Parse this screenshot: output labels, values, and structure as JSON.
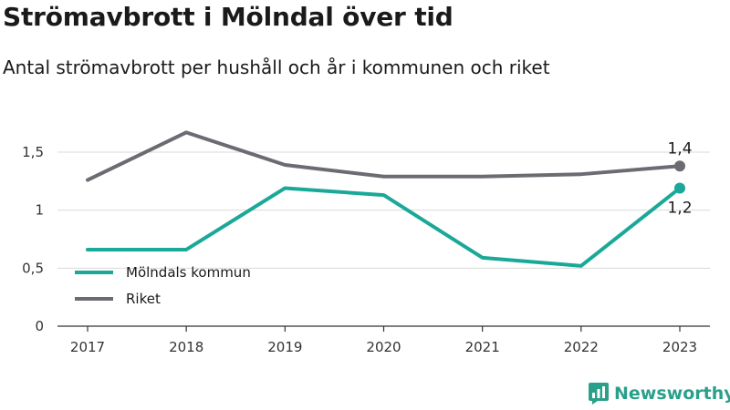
{
  "title": "Strömavbrott i Mölndal över tid",
  "subtitle": "Antal strömavbrott per hushåll och år i kommunen och riket",
  "brand": "Newsworthy",
  "colors": {
    "kommun": "#1aa898",
    "riket": "#6b6b72",
    "grid": "#d9d9d9",
    "brand": "#2aa08a"
  },
  "chart_data": {
    "type": "line",
    "categories": [
      "2017",
      "2018",
      "2019",
      "2020",
      "2021",
      "2022",
      "2023"
    ],
    "ylim": [
      0,
      1.65
    ],
    "yticks": [
      0,
      0.5,
      1,
      1.5
    ],
    "ytick_labels": [
      "0",
      "0,5",
      "1",
      "1,5"
    ],
    "grid": true,
    "legend_position": "left-center",
    "series": [
      {
        "name": "Mölndals kommun",
        "key": "kommun",
        "values": [
          0.66,
          0.66,
          1.19,
          1.13,
          0.59,
          0.52,
          1.19
        ],
        "end_label": "1,2"
      },
      {
        "name": "Riket",
        "key": "riket",
        "values": [
          1.26,
          1.67,
          1.39,
          1.29,
          1.29,
          1.31,
          1.38
        ],
        "end_label": "1,4"
      }
    ]
  }
}
